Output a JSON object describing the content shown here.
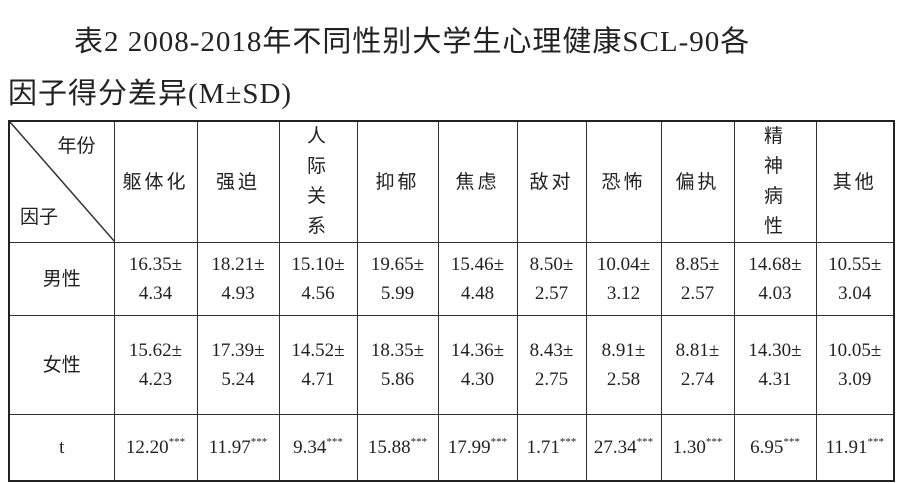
{
  "title_lines": [
    "表2 2008-2018年不同性别大学生心理健康SCL-90各",
    "因子得分差异(M±SD)"
  ],
  "table": {
    "corner_top": "年份",
    "corner_bottom": "因子",
    "columns": [
      "躯体化",
      "强迫",
      "人际关系",
      "抑郁",
      "焦虑",
      "敌对",
      "恐怖",
      "偏执",
      "精神病性",
      "其他"
    ],
    "wrap_columns": [
      2,
      8
    ],
    "rows": [
      {
        "label": "男性",
        "cells": [
          [
            "16.35±",
            "4.34"
          ],
          [
            "18.21±",
            "4.93"
          ],
          [
            "15.10±",
            "4.56"
          ],
          [
            "19.65±",
            "5.99"
          ],
          [
            "15.46±",
            "4.48"
          ],
          [
            "8.50±",
            "2.57"
          ],
          [
            "10.04±",
            "3.12"
          ],
          [
            "8.85±",
            "2.57"
          ],
          [
            "14.68±",
            "4.03"
          ],
          [
            "10.55±",
            "3.04"
          ]
        ]
      },
      {
        "label": "女性",
        "cells": [
          [
            "15.62±",
            "4.23"
          ],
          [
            "17.39±",
            "5.24"
          ],
          [
            "14.52±",
            "4.71"
          ],
          [
            "18.35±",
            "5.86"
          ],
          [
            "14.36±",
            "4.30"
          ],
          [
            "8.43±",
            "2.75"
          ],
          [
            "8.91±",
            "2.58"
          ],
          [
            "8.81±",
            "2.74"
          ],
          [
            "14.30±",
            "4.31"
          ],
          [
            "10.05±",
            "3.09"
          ]
        ]
      }
    ],
    "t_row": {
      "label": "t",
      "cells": [
        {
          "value": "12.20",
          "sig": "***"
        },
        {
          "value": "11.97",
          "sig": "***"
        },
        {
          "value": "9.34",
          "sig": "***"
        },
        {
          "value": "15.88",
          "sig": "***"
        },
        {
          "value": "17.99",
          "sig": "***"
        },
        {
          "value": "1.71",
          "sig": "***"
        },
        {
          "value": "27.34",
          "sig": "***"
        },
        {
          "value": "1.30",
          "sig": "***"
        },
        {
          "value": "6.95",
          "sig": "***"
        },
        {
          "value": "11.91",
          "sig": "***"
        }
      ]
    }
  }
}
